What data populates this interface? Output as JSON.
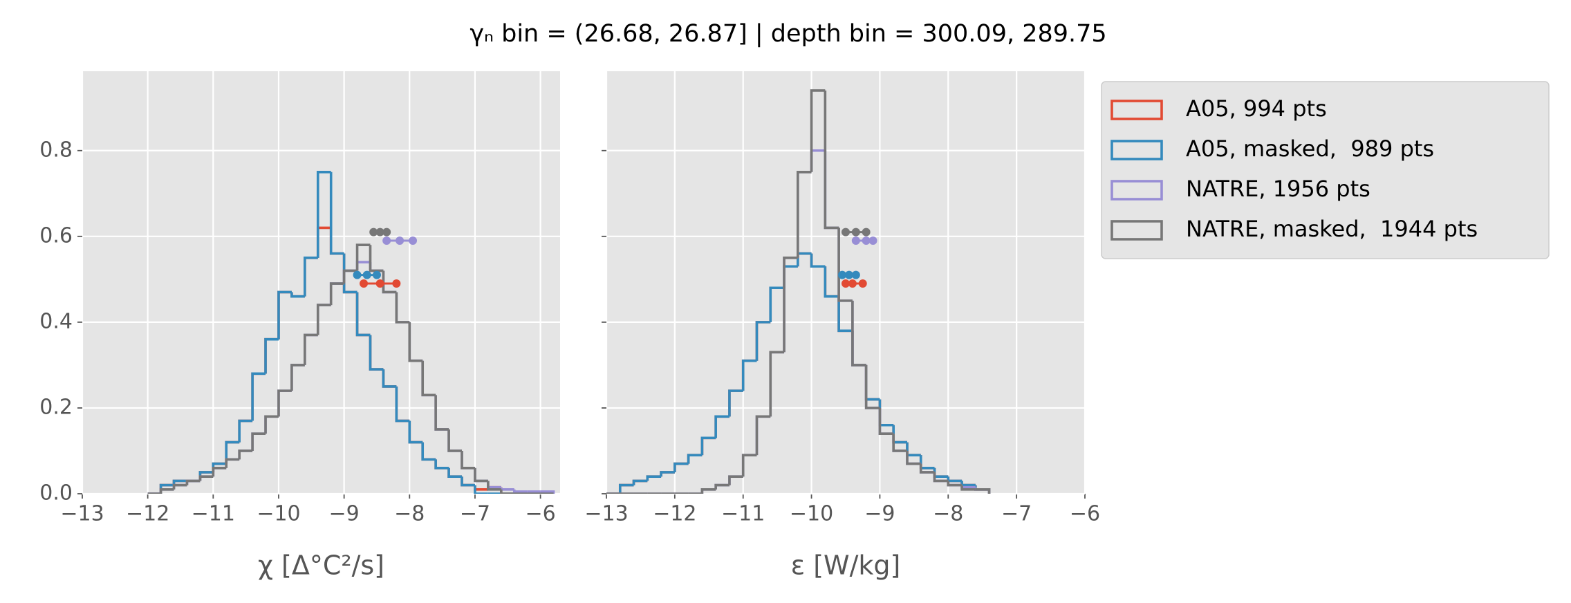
{
  "title": "γₙ bin = (26.68, 26.87] | depth bin = 300.09, 289.75",
  "legend": {
    "corner": "outside upper right"
  },
  "chart_data": [
    {
      "type": "histogram",
      "xlabel": "χ [Δ°C²/s]",
      "xlim": [
        -13,
        -5.7
      ],
      "ylim": [
        0,
        0.985
      ],
      "xticks": [
        {
          "value": -13,
          "label": "−13"
        },
        {
          "value": -12,
          "label": "−12"
        },
        {
          "value": -11,
          "label": "−11"
        },
        {
          "value": -10,
          "label": "−10"
        },
        {
          "value": -9,
          "label": "−9"
        },
        {
          "value": -8,
          "label": "−8"
        },
        {
          "value": -7,
          "label": "−7"
        },
        {
          "value": -6,
          "label": "−6"
        }
      ],
      "yticks": [
        {
          "value": 0,
          "label": "0.0"
        },
        0.2,
        0.4,
        0.6,
        0.8
      ],
      "ytick_labels": true,
      "grid": true,
      "series": [
        {
          "name": "A05, 994 pts",
          "color": "#E24A33",
          "bins": [
            -12.0,
            -11.8,
            -11.6,
            -11.4,
            -11.2,
            -11.0,
            -10.8,
            -10.6,
            -10.4,
            -10.2,
            -10.0,
            -9.8,
            -9.6,
            -9.4,
            -9.2,
            -9.0,
            -8.8,
            -8.6,
            -8.4,
            -8.2,
            -8.0,
            -7.8,
            -7.6,
            -7.4,
            -7.2,
            -7.0,
            -6.8,
            -6.6,
            -6.4,
            -6.2,
            -6.0,
            -5.8
          ],
          "values": [
            0,
            0.02,
            0.03,
            0.03,
            0.05,
            0.07,
            0.12,
            0.17,
            0.28,
            0.36,
            0.47,
            0.46,
            0.55,
            0.62,
            0.56,
            0.47,
            0.37,
            0.29,
            0.25,
            0.17,
            0.12,
            0.08,
            0.06,
            0.04,
            0.02,
            0.01,
            0.015,
            0,
            0,
            0,
            0
          ],
          "stat_x": [
            -8.7,
            -8.45,
            -8.2
          ],
          "stat_y": 0.49
        },
        {
          "name": "A05, masked,  989 pts",
          "color": "#348ABD",
          "bins": [
            -12.0,
            -11.8,
            -11.6,
            -11.4,
            -11.2,
            -11.0,
            -10.8,
            -10.6,
            -10.4,
            -10.2,
            -10.0,
            -9.8,
            -9.6,
            -9.4,
            -9.2,
            -9.0,
            -8.8,
            -8.6,
            -8.4,
            -8.2,
            -8.0,
            -7.8,
            -7.6,
            -7.4,
            -7.2,
            -7.0,
            -6.8,
            -6.6,
            -6.4,
            -6.2,
            -6.0,
            -5.8
          ],
          "values": [
            0,
            0.02,
            0.03,
            0.03,
            0.05,
            0.07,
            0.12,
            0.17,
            0.28,
            0.36,
            0.47,
            0.46,
            0.55,
            0.75,
            0.56,
            0.47,
            0.37,
            0.29,
            0.25,
            0.17,
            0.12,
            0.08,
            0.06,
            0.04,
            0.02,
            0,
            0,
            0,
            0,
            0,
            0
          ],
          "stat_x": [
            -8.8,
            -8.65,
            -8.5
          ],
          "stat_y": 0.51
        },
        {
          "name": "NATRE, 1956 pts",
          "color": "#988ED5",
          "bins": [
            -12.0,
            -11.8,
            -11.6,
            -11.4,
            -11.2,
            -11.0,
            -10.8,
            -10.6,
            -10.4,
            -10.2,
            -10.0,
            -9.8,
            -9.6,
            -9.4,
            -9.2,
            -9.0,
            -8.8,
            -8.6,
            -8.4,
            -8.2,
            -8.0,
            -7.8,
            -7.6,
            -7.4,
            -7.2,
            -7.0,
            -6.8,
            -6.6,
            -6.4,
            -6.2,
            -6.0,
            -5.8
          ],
          "values": [
            0,
            0.01,
            0.02,
            0.03,
            0.04,
            0.06,
            0.08,
            0.1,
            0.14,
            0.18,
            0.24,
            0.3,
            0.37,
            0.44,
            0.49,
            0.52,
            0.54,
            0.52,
            0.47,
            0.4,
            0.31,
            0.23,
            0.15,
            0.1,
            0.06,
            0.03,
            0.015,
            0.01,
            0.005,
            0.005,
            0.005
          ],
          "stat_x": [
            -8.35,
            -8.15,
            -7.95
          ],
          "stat_y": 0.59
        },
        {
          "name": "NATRE, masked,  1944 pts",
          "color": "#777777",
          "bins": [
            -12.0,
            -11.8,
            -11.6,
            -11.4,
            -11.2,
            -11.0,
            -10.8,
            -10.6,
            -10.4,
            -10.2,
            -10.0,
            -9.8,
            -9.6,
            -9.4,
            -9.2,
            -9.0,
            -8.8,
            -8.6,
            -8.4,
            -8.2,
            -8.0,
            -7.8,
            -7.6,
            -7.4,
            -7.2,
            -7.0,
            -6.8,
            -6.6,
            -6.4,
            -6.2,
            -6.0,
            -5.8
          ],
          "values": [
            0,
            0.01,
            0.02,
            0.03,
            0.04,
            0.06,
            0.08,
            0.1,
            0.14,
            0.18,
            0.24,
            0.3,
            0.37,
            0.44,
            0.49,
            0.52,
            0.58,
            0.52,
            0.47,
            0.4,
            0.31,
            0.23,
            0.15,
            0.1,
            0.06,
            0.03,
            0.01,
            0,
            0,
            0,
            0
          ],
          "stat_x": [
            -8.55,
            -8.45,
            -8.35
          ],
          "stat_y": 0.61
        }
      ]
    },
    {
      "type": "histogram",
      "xlabel": "ε [W/kg]",
      "xlim": [
        -13,
        -6
      ],
      "ylim": [
        0,
        0.985
      ],
      "xticks": [
        {
          "value": -13,
          "label": "−13"
        },
        {
          "value": -12,
          "label": "−12"
        },
        {
          "value": -11,
          "label": "−11"
        },
        {
          "value": -10,
          "label": "−10"
        },
        {
          "value": -9,
          "label": "−9"
        },
        {
          "value": -8,
          "label": "−8"
        },
        {
          "value": -7,
          "label": "−7"
        },
        {
          "value": -6,
          "label": "−6"
        }
      ],
      "yticks": [
        0,
        0.2,
        0.4,
        0.6,
        0.8
      ],
      "ytick_labels": false,
      "grid": true,
      "series": [
        {
          "name": "A05, 994 pts",
          "color": "#E24A33",
          "bins": [
            -13.0,
            -12.8,
            -12.6,
            -12.4,
            -12.2,
            -12.0,
            -11.8,
            -11.6,
            -11.4,
            -11.2,
            -11.0,
            -10.8,
            -10.6,
            -10.4,
            -10.2,
            -10.0,
            -9.8,
            -9.6,
            -9.4,
            -9.2,
            -9.0,
            -8.8,
            -8.6,
            -8.4,
            -8.2,
            -8.0,
            -7.8,
            -7.6,
            -7.4
          ],
          "values": [
            0,
            0.02,
            0.03,
            0.04,
            0.05,
            0.07,
            0.09,
            0.13,
            0.18,
            0.24,
            0.31,
            0.4,
            0.48,
            0.53,
            0.56,
            0.53,
            0.46,
            0.38,
            0.3,
            0.22,
            0.16,
            0.12,
            0.09,
            0.06,
            0.04,
            0.03,
            0.02,
            0.01
          ],
          "stat_x": [
            -9.5,
            -9.4,
            -9.25
          ],
          "stat_y": 0.49
        },
        {
          "name": "A05, masked,  989 pts",
          "color": "#348ABD",
          "bins": [
            -13.0,
            -12.8,
            -12.6,
            -12.4,
            -12.2,
            -12.0,
            -11.8,
            -11.6,
            -11.4,
            -11.2,
            -11.0,
            -10.8,
            -10.6,
            -10.4,
            -10.2,
            -10.0,
            -9.8,
            -9.6,
            -9.4,
            -9.2,
            -9.0,
            -8.8,
            -8.6,
            -8.4,
            -8.2,
            -8.0,
            -7.8,
            -7.6,
            -7.4
          ],
          "values": [
            0,
            0.02,
            0.03,
            0.04,
            0.05,
            0.07,
            0.09,
            0.13,
            0.18,
            0.24,
            0.31,
            0.4,
            0.48,
            0.53,
            0.56,
            0.53,
            0.46,
            0.38,
            0.3,
            0.22,
            0.16,
            0.12,
            0.09,
            0.06,
            0.04,
            0.03,
            0.02,
            0.01
          ],
          "stat_x": [
            -9.55,
            -9.45,
            -9.35
          ],
          "stat_y": 0.51
        },
        {
          "name": "NATRE, 1956 pts",
          "color": "#988ED5",
          "bins": [
            -13.0,
            -12.8,
            -12.6,
            -12.4,
            -12.2,
            -12.0,
            -11.8,
            -11.6,
            -11.4,
            -11.2,
            -11.0,
            -10.8,
            -10.6,
            -10.4,
            -10.2,
            -10.0,
            -9.8,
            -9.6,
            -9.4,
            -9.2,
            -9.0,
            -8.8,
            -8.6,
            -8.4,
            -8.2,
            -8.0,
            -7.8,
            -7.6,
            -7.4
          ],
          "values": [
            0,
            0,
            0,
            0,
            0,
            0,
            0,
            0.01,
            0.02,
            0.04,
            0.09,
            0.18,
            0.33,
            0.55,
            0.75,
            0.8,
            0.62,
            0.45,
            0.3,
            0.2,
            0.14,
            0.1,
            0.07,
            0.05,
            0.03,
            0.02,
            0.015,
            0.01
          ],
          "stat_x": [
            -9.35,
            -9.2,
            -9.1
          ],
          "stat_y": 0.59
        },
        {
          "name": "NATRE, masked,  1944 pts",
          "color": "#777777",
          "bins": [
            -13.0,
            -12.8,
            -12.6,
            -12.4,
            -12.2,
            -12.0,
            -11.8,
            -11.6,
            -11.4,
            -11.2,
            -11.0,
            -10.8,
            -10.6,
            -10.4,
            -10.2,
            -10.0,
            -9.8,
            -9.6,
            -9.4,
            -9.2,
            -9.0,
            -8.8,
            -8.6,
            -8.4,
            -8.2,
            -8.0,
            -7.8,
            -7.6,
            -7.4
          ],
          "values": [
            0,
            0,
            0,
            0,
            0,
            0,
            0,
            0.01,
            0.02,
            0.04,
            0.09,
            0.18,
            0.33,
            0.55,
            0.75,
            0.94,
            0.62,
            0.45,
            0.3,
            0.2,
            0.14,
            0.1,
            0.07,
            0.05,
            0.03,
            0.02,
            0.01,
            0.01
          ],
          "stat_x": [
            -9.5,
            -9.35,
            -9.2
          ],
          "stat_y": 0.61
        }
      ]
    }
  ]
}
